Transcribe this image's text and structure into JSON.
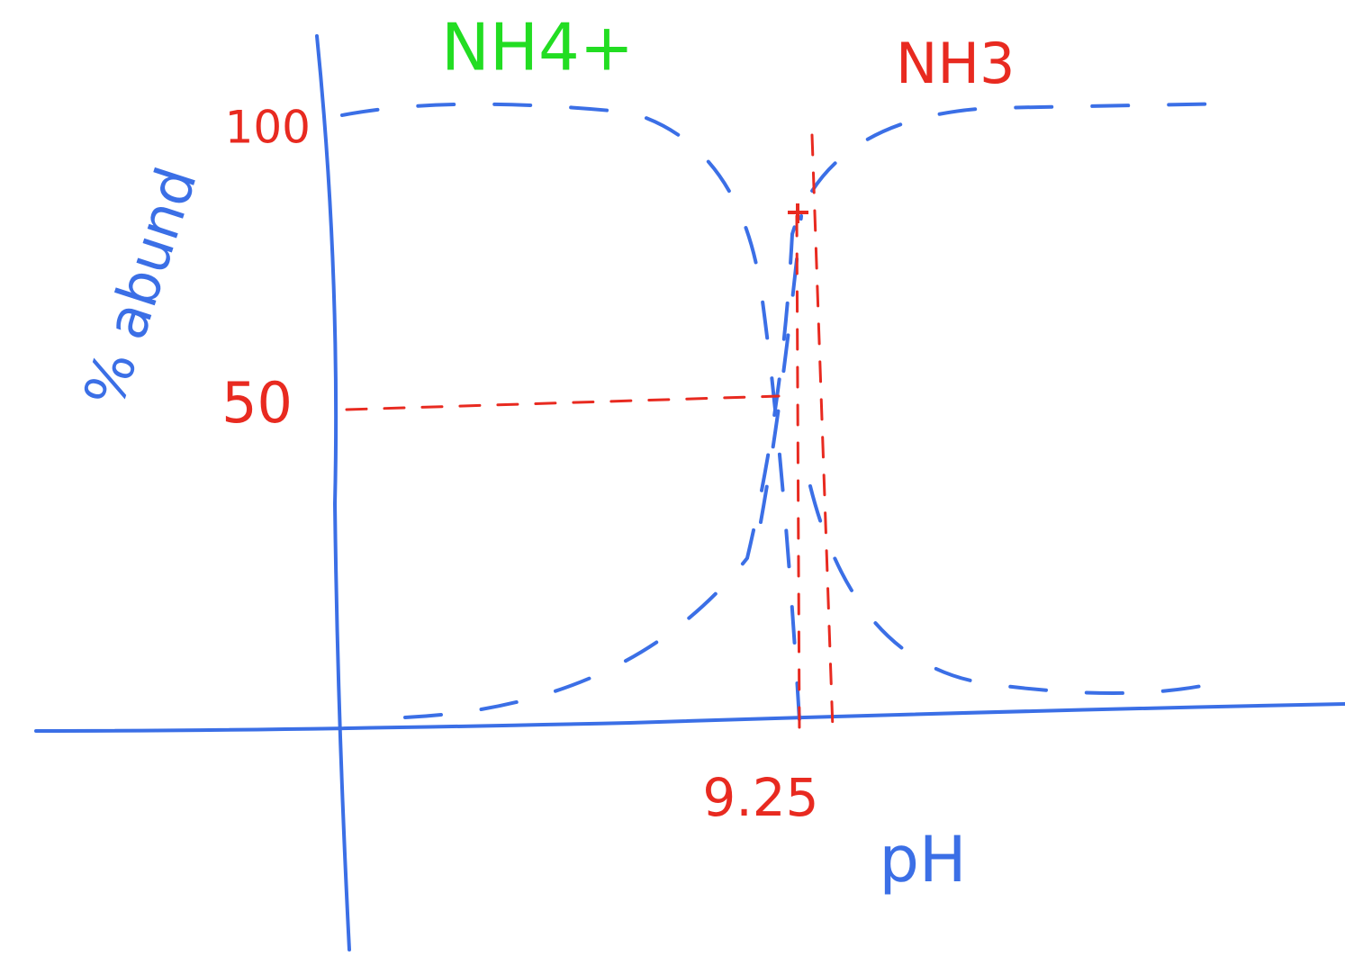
{
  "species": {
    "left": "NH4+",
    "right": "NH3"
  },
  "y_axis": {
    "label": "% abund",
    "ticks": [
      "100",
      "50"
    ]
  },
  "x_axis": {
    "label": "pH",
    "mark": "9.25"
  }
}
